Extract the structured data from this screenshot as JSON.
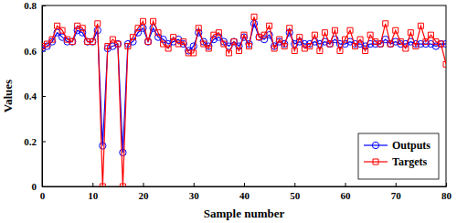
{
  "chart_data": {
    "type": "line",
    "xlabel": "Sample number",
    "ylabel": "Values",
    "x": [
      0,
      1,
      2,
      3,
      4,
      5,
      6,
      7,
      8,
      9,
      10,
      11,
      12,
      13,
      14,
      15,
      16,
      17,
      18,
      19,
      20,
      21,
      22,
      23,
      24,
      25,
      26,
      27,
      28,
      29,
      30,
      31,
      32,
      33,
      34,
      35,
      36,
      37,
      38,
      39,
      40,
      41,
      42,
      43,
      44,
      45,
      46,
      47,
      48,
      49,
      50,
      51,
      52,
      53,
      54,
      55,
      56,
      57,
      58,
      59,
      60,
      61,
      62,
      63,
      64,
      65,
      66,
      67,
      68,
      69,
      70,
      71,
      72,
      73,
      74,
      75,
      76,
      77,
      78,
      79,
      80
    ],
    "series": [
      {
        "name": "Outputs",
        "color": "#0000ff",
        "marker": "circle",
        "line_style": "solid",
        "values": [
          0.61,
          0.62,
          0.64,
          0.68,
          0.66,
          0.64,
          0.64,
          0.69,
          0.68,
          0.64,
          0.64,
          0.69,
          0.18,
          0.61,
          0.62,
          0.63,
          0.15,
          0.63,
          0.64,
          0.68,
          0.7,
          0.64,
          0.7,
          0.66,
          0.65,
          0.63,
          0.64,
          0.65,
          0.63,
          0.6,
          0.62,
          0.68,
          0.64,
          0.62,
          0.65,
          0.66,
          0.64,
          0.62,
          0.64,
          0.62,
          0.66,
          0.63,
          0.72,
          0.66,
          0.65,
          0.67,
          0.62,
          0.64,
          0.63,
          0.68,
          0.63,
          0.64,
          0.63,
          0.63,
          0.64,
          0.63,
          0.64,
          0.63,
          0.65,
          0.63,
          0.63,
          0.64,
          0.63,
          0.63,
          0.62,
          0.63,
          0.63,
          0.63,
          0.65,
          0.63,
          0.64,
          0.63,
          0.63,
          0.64,
          0.63,
          0.63,
          0.63,
          0.63,
          0.62,
          0.63,
          0.63
        ]
      },
      {
        "name": "Targets",
        "color": "#ff0000",
        "marker": "square",
        "line_style": "solid",
        "values": [
          0.62,
          0.63,
          0.65,
          0.71,
          0.69,
          0.65,
          0.64,
          0.71,
          0.7,
          0.64,
          0.64,
          0.72,
          0,
          0.62,
          0.65,
          0.63,
          0,
          0.62,
          0.66,
          0.7,
          0.73,
          0.64,
          0.73,
          0.68,
          0.63,
          0.61,
          0.66,
          0.63,
          0.64,
          0.59,
          0.59,
          0.7,
          0.63,
          0.61,
          0.67,
          0.68,
          0.63,
          0.59,
          0.64,
          0.6,
          0.67,
          0.62,
          0.75,
          0.66,
          0.67,
          0.71,
          0.61,
          0.65,
          0.62,
          0.7,
          0.6,
          0.66,
          0.61,
          0.62,
          0.67,
          0.6,
          0.68,
          0.63,
          0.69,
          0.6,
          0.65,
          0.69,
          0.62,
          0.65,
          0.6,
          0.67,
          0.64,
          0.63,
          0.72,
          0.63,
          0.69,
          0.64,
          0.61,
          0.68,
          0.62,
          0.71,
          0.64,
          0.67,
          0.64,
          0.63,
          0.54
        ]
      }
    ],
    "xlim": [
      0,
      80
    ],
    "xticks": [
      0,
      10,
      20,
      30,
      40,
      50,
      60,
      70,
      80
    ],
    "ylim": [
      0,
      0.8
    ],
    "yticks": [
      0,
      0.2,
      0.4,
      0.6,
      0.8
    ],
    "grid": false,
    "legend": "lower right"
  }
}
